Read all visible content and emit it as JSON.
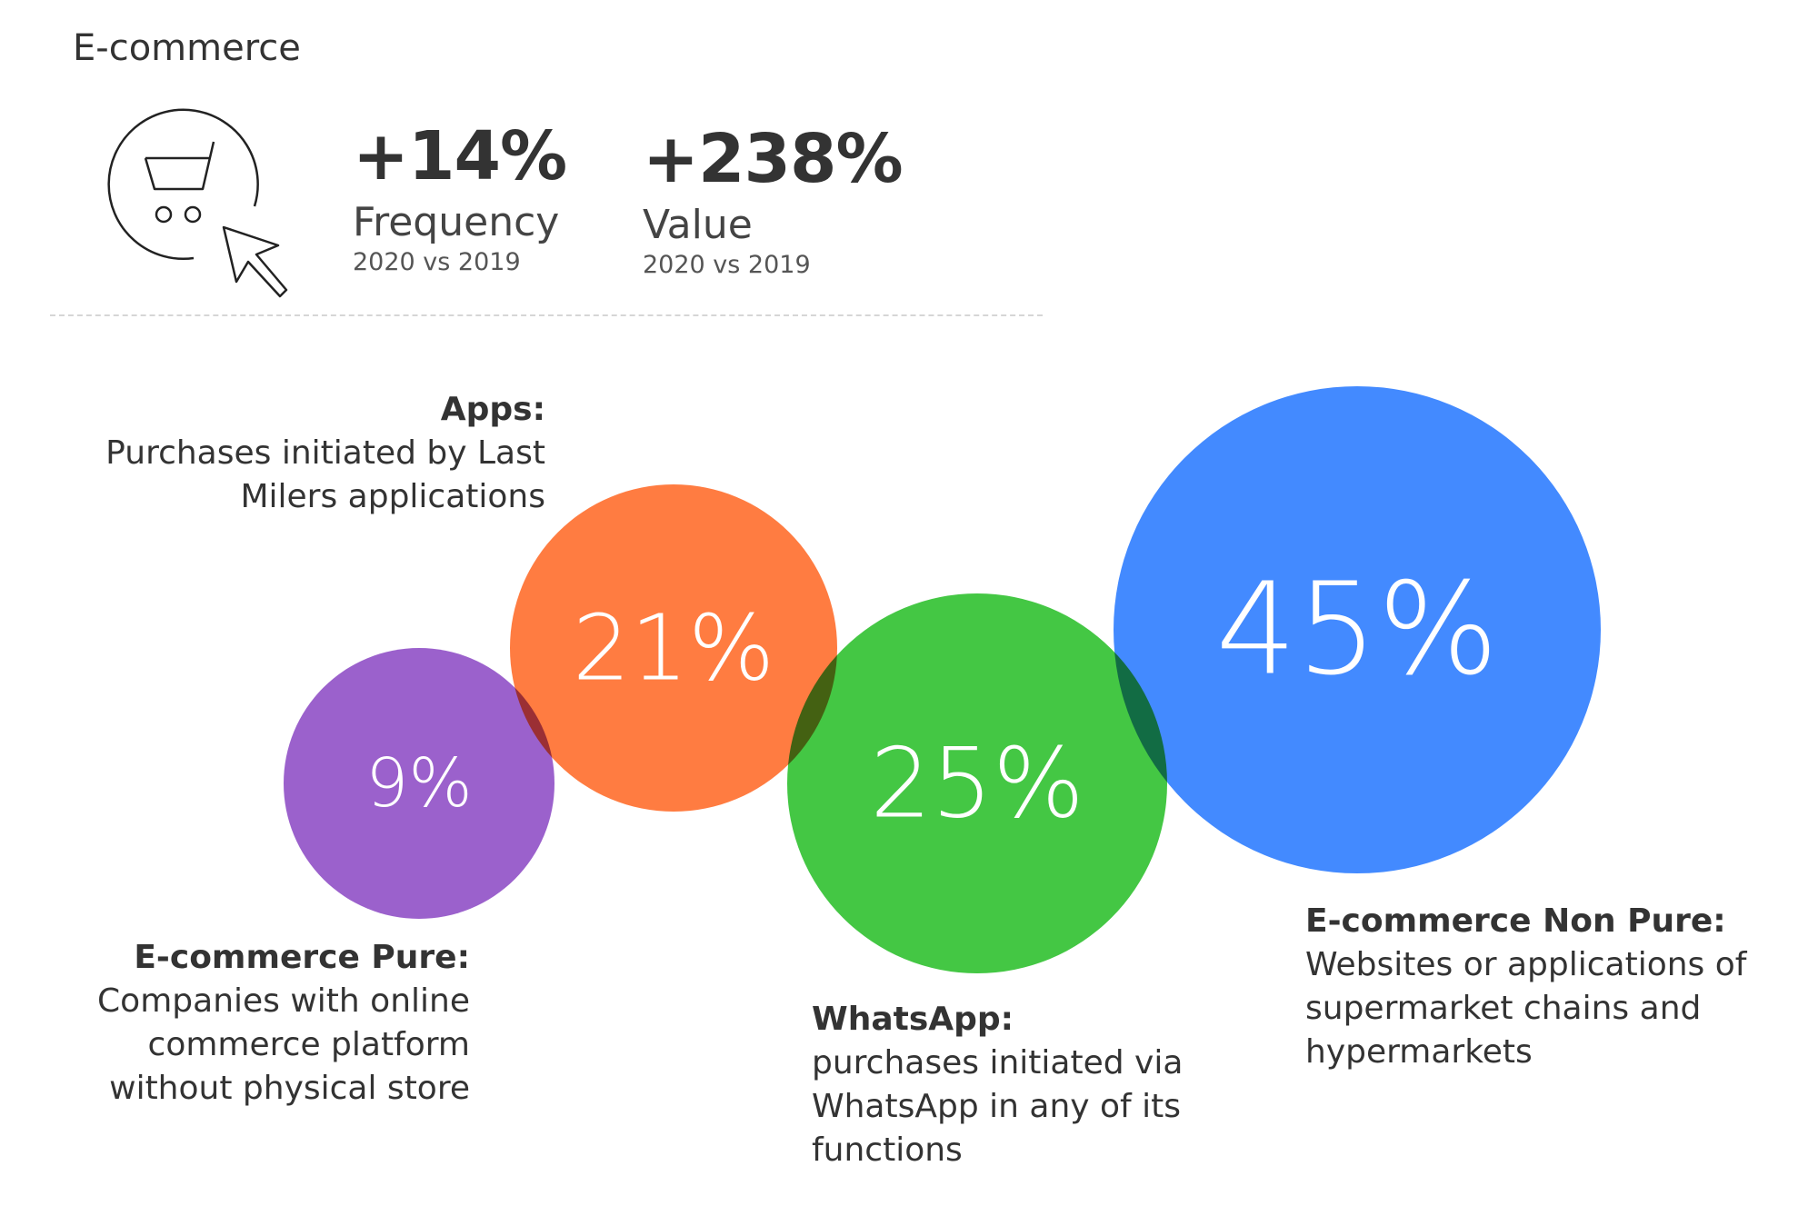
{
  "header": {
    "title": "E-commerce",
    "icon": "shopping-cart-cursor-icon",
    "stats": [
      {
        "value": "+14%",
        "label": "Frequency",
        "period": "2020 vs 2019"
      },
      {
        "value": "+238%",
        "label": "Value",
        "period": "2020 vs 2019"
      }
    ]
  },
  "chart_data": {
    "type": "bubble",
    "title": "",
    "series": [
      {
        "name": "E-commerce Pure",
        "value": 9,
        "label": "9%",
        "color": "#9254c8",
        "description": "Companies with online commerce platform without physical store"
      },
      {
        "name": "Apps",
        "value": 21,
        "label": "21%",
        "color": "#ff7131",
        "description": "Purchases initiated by Last Milers applications"
      },
      {
        "name": "WhatsApp",
        "value": 25,
        "label": "25%",
        "color": "#34c234",
        "description": "purchases initiated via WhatsApp in any of its functions"
      },
      {
        "name": "E-commerce Non Pure",
        "value": 45,
        "label": "45%",
        "color": "#3380ff",
        "description": "Websites or applications of supermarket chains and hypermarkets"
      }
    ]
  },
  "annotations": {
    "apps": {
      "head": "Apps:",
      "lines": [
        "Purchases initiated by Last",
        "Milers applications"
      ]
    },
    "pure": {
      "head": "E-commerce Pure:",
      "lines": [
        "Companies with online",
        "commerce platform",
        "without physical store"
      ]
    },
    "whatsapp": {
      "head": "WhatsApp:",
      "lines": [
        "purchases initiated via",
        "WhatsApp in any of its",
        "functions"
      ]
    },
    "nonpure": {
      "head": "E-commerce Non Pure:",
      "lines": [
        "Websites or applications of",
        "supermarket chains and",
        "hypermarkets"
      ]
    }
  }
}
